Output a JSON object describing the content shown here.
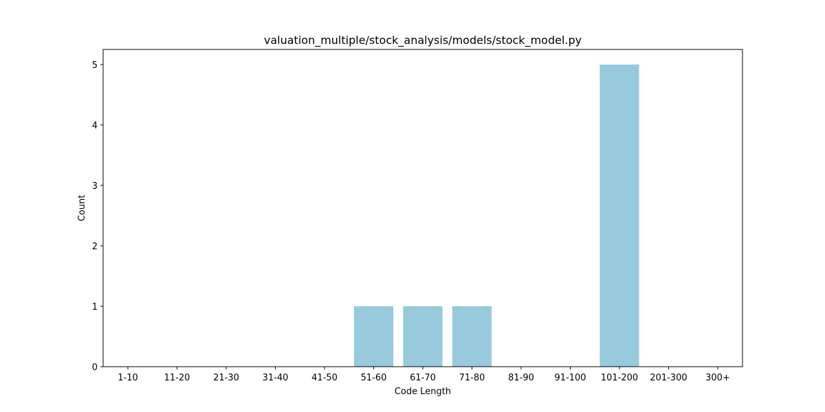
{
  "chart_data": {
    "type": "bar",
    "title": "valuation_multiple/stock_analysis/models/stock_model.py",
    "xlabel": "Code Length",
    "ylabel": "Count",
    "categories": [
      "1-10",
      "11-20",
      "21-30",
      "31-40",
      "41-50",
      "51-60",
      "61-70",
      "71-80",
      "81-90",
      "91-100",
      "101-200",
      "201-300",
      "300+"
    ],
    "values": [
      0,
      0,
      0,
      0,
      0,
      1,
      1,
      1,
      0,
      0,
      5,
      0,
      0
    ],
    "yticks": [
      0,
      1,
      2,
      3,
      4,
      5
    ],
    "ylim": [
      0,
      5.25
    ],
    "grid": false,
    "bar_color": "#96cadc"
  }
}
